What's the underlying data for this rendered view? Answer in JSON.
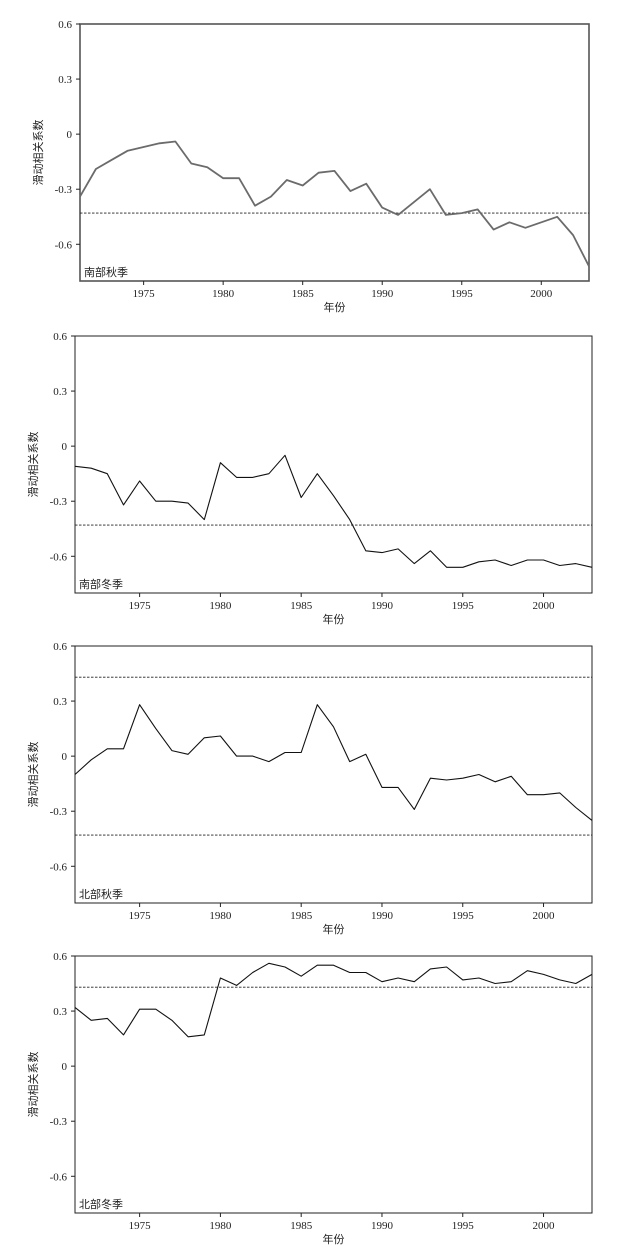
{
  "chart_data": [
    {
      "type": "line",
      "ylabel": "滑动相关系数",
      "xlabel": "年份",
      "panel_label": "南部秋季",
      "xlim": [
        1971,
        2003
      ],
      "ylim": [
        -0.8,
        0.6
      ],
      "xticks": [
        1975,
        1980,
        1985,
        1990,
        1995,
        2000
      ],
      "yticks": [
        0.6,
        0.3,
        0,
        -0.3,
        -0.6
      ],
      "ytick_labels": [
        "0.6",
        "0.3",
        "0",
        "-0.3",
        "-0.6"
      ],
      "line_color": "#6b6b6b",
      "threshold_lines": [
        -0.43
      ],
      "series": [
        {
          "x": [
            1971,
            1972,
            1973,
            1974,
            1975,
            1976,
            1977,
            1978,
            1979,
            1980,
            1981,
            1982,
            1983,
            1984,
            1985,
            1986,
            1987,
            1988,
            1989,
            1990,
            1991,
            1992,
            1993,
            1994,
            1995,
            1996,
            1997,
            1998,
            1999,
            2000,
            2001,
            2002,
            2003
          ],
          "y": [
            -0.34,
            -0.19,
            -0.14,
            -0.09,
            -0.07,
            -0.05,
            -0.04,
            -0.16,
            -0.18,
            -0.24,
            -0.24,
            -0.39,
            -0.34,
            -0.25,
            -0.28,
            -0.21,
            -0.2,
            -0.31,
            -0.27,
            -0.4,
            -0.44,
            -0.37,
            -0.3,
            -0.44,
            -0.43,
            -0.41,
            -0.52,
            -0.48,
            -0.51,
            -0.48,
            -0.45,
            -0.55,
            -0.72
          ]
        }
      ]
    },
    {
      "type": "line",
      "ylabel": "滑动相关系数",
      "xlabel": "年份",
      "panel_label": "南部冬季",
      "xlim": [
        1971,
        2003
      ],
      "ylim": [
        -0.8,
        0.6
      ],
      "xticks": [
        1975,
        1980,
        1985,
        1990,
        1995,
        2000
      ],
      "yticks": [
        0.6,
        0.3,
        0,
        -0.3,
        -0.6
      ],
      "ytick_labels": [
        "0.6",
        "0.3",
        "0",
        "-0.3",
        "-0.6"
      ],
      "line_color": "#111111",
      "threshold_lines": [
        -0.43
      ],
      "series": [
        {
          "x": [
            1971,
            1972,
            1973,
            1974,
            1975,
            1976,
            1977,
            1978,
            1979,
            1980,
            1981,
            1982,
            1983,
            1984,
            1985,
            1986,
            1987,
            1988,
            1989,
            1990,
            1991,
            1992,
            1993,
            1994,
            1995,
            1996,
            1997,
            1998,
            1999,
            2000,
            2001,
            2002,
            2003
          ],
          "y": [
            -0.11,
            -0.12,
            -0.15,
            -0.32,
            -0.19,
            -0.3,
            -0.3,
            -0.31,
            -0.4,
            -0.09,
            -0.17,
            -0.17,
            -0.15,
            -0.05,
            -0.28,
            -0.15,
            -0.27,
            -0.4,
            -0.57,
            -0.58,
            -0.56,
            -0.64,
            -0.57,
            -0.66,
            -0.66,
            -0.63,
            -0.62,
            -0.65,
            -0.62,
            -0.62,
            -0.65,
            -0.64,
            -0.66
          ]
        }
      ]
    },
    {
      "type": "line",
      "ylabel": "滑动相关系数",
      "xlabel": "年份",
      "panel_label": "北部秋季",
      "xlim": [
        1971,
        2003
      ],
      "ylim": [
        -0.8,
        0.6
      ],
      "xticks": [
        1975,
        1980,
        1985,
        1990,
        1995,
        2000
      ],
      "yticks": [
        0.6,
        0.3,
        0,
        -0.3,
        -0.6
      ],
      "ytick_labels": [
        "0.6",
        "0.3",
        "0",
        "-0.3",
        "-0.6"
      ],
      "line_color": "#111111",
      "threshold_lines": [
        0.43,
        -0.43
      ],
      "series": [
        {
          "x": [
            1971,
            1972,
            1973,
            1974,
            1975,
            1976,
            1977,
            1978,
            1979,
            1980,
            1981,
            1982,
            1983,
            1984,
            1985,
            1986,
            1987,
            1988,
            1989,
            1990,
            1991,
            1992,
            1993,
            1994,
            1995,
            1996,
            1997,
            1998,
            1999,
            2000,
            2001,
            2002,
            2003
          ],
          "y": [
            -0.1,
            -0.02,
            0.04,
            0.04,
            0.28,
            0.15,
            0.03,
            0.01,
            0.1,
            0.11,
            0.0,
            0.0,
            -0.03,
            0.02,
            0.02,
            0.28,
            0.16,
            -0.03,
            0.01,
            -0.17,
            -0.17,
            -0.29,
            -0.12,
            -0.13,
            -0.12,
            -0.1,
            -0.14,
            -0.11,
            -0.21,
            -0.21,
            -0.2,
            -0.28,
            -0.35
          ]
        }
      ]
    },
    {
      "type": "line",
      "ylabel": "滑动相关系数",
      "xlabel": "年份",
      "panel_label": "北部冬季",
      "xlim": [
        1971,
        2003
      ],
      "ylim": [
        -0.8,
        0.6
      ],
      "xticks": [
        1975,
        1980,
        1985,
        1990,
        1995,
        2000
      ],
      "yticks": [
        0.6,
        0.3,
        0,
        -0.3,
        -0.6
      ],
      "ytick_labels": [
        "0.6",
        "0.3",
        "0",
        "-0.3",
        "-0.6"
      ],
      "line_color": "#111111",
      "threshold_lines": [
        0.43
      ],
      "series": [
        {
          "x": [
            1971,
            1972,
            1973,
            1974,
            1975,
            1976,
            1977,
            1978,
            1979,
            1980,
            1981,
            1982,
            1983,
            1984,
            1985,
            1986,
            1987,
            1988,
            1989,
            1990,
            1991,
            1992,
            1993,
            1994,
            1995,
            1996,
            1997,
            1998,
            1999,
            2000,
            2001,
            2002,
            2003
          ],
          "y": [
            0.32,
            0.25,
            0.26,
            0.17,
            0.31,
            0.31,
            0.25,
            0.16,
            0.17,
            0.48,
            0.44,
            0.51,
            0.56,
            0.54,
            0.49,
            0.55,
            0.55,
            0.51,
            0.51,
            0.46,
            0.48,
            0.46,
            0.53,
            0.54,
            0.47,
            0.48,
            0.45,
            0.46,
            0.52,
            0.5,
            0.47,
            0.45,
            0.5
          ]
        }
      ]
    }
  ]
}
